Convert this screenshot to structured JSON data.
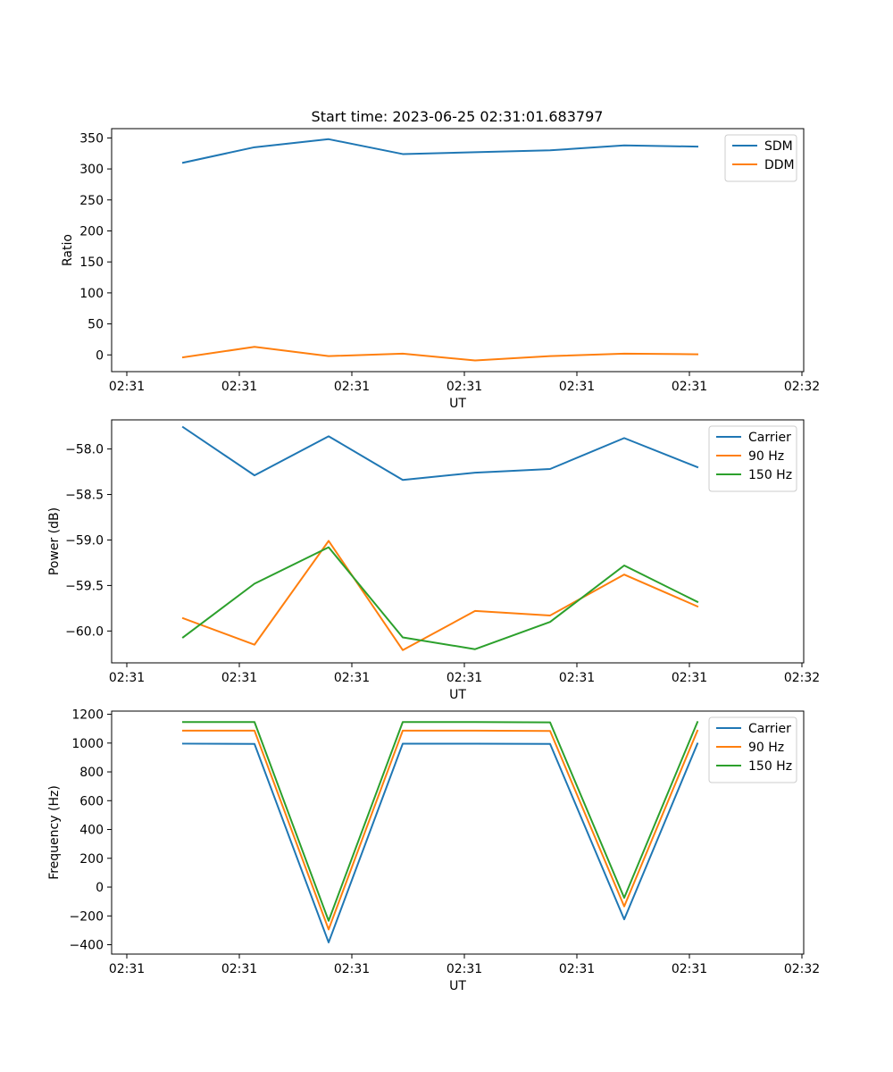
{
  "figure": {
    "title": "Start time: 2023-06-25 02:31:01.683797"
  },
  "chart_data": [
    {
      "type": "line",
      "title": "Start time: 2023-06-25 02:31:01.683797",
      "xlabel": "UT",
      "ylabel": "Ratio",
      "x_tick_labels": [
        "02:31",
        "02:31",
        "02:31",
        "02:31",
        "02:31",
        "02:31",
        "02:32"
      ],
      "x_points": 8,
      "ylim": [
        -27,
        365
      ],
      "y_ticks": [
        0,
        50,
        100,
        150,
        200,
        250,
        300,
        350
      ],
      "legend_position": "top-right",
      "series": [
        {
          "name": "SDM",
          "color": "#1f77b4",
          "values": [
            310,
            335,
            348,
            324,
            327,
            330,
            338,
            336
          ]
        },
        {
          "name": "DDM",
          "color": "#ff7f0e",
          "values": [
            -4,
            13,
            -2,
            2,
            -9,
            -2,
            2,
            1
          ]
        }
      ]
    },
    {
      "type": "line",
      "xlabel": "UT",
      "ylabel": "Power (dB)",
      "x_tick_labels": [
        "02:31",
        "02:31",
        "02:31",
        "02:31",
        "02:31",
        "02:31",
        "02:32"
      ],
      "x_points": 8,
      "ylim": [
        -60.35,
        -57.68
      ],
      "y_ticks": [
        -60.0,
        -59.5,
        -59.0,
        -58.5,
        -58.0
      ],
      "y_tick_labels": [
        "−60.0",
        "−59.5",
        "−59.0",
        "−58.5",
        "−58.0"
      ],
      "legend_position": "top-right",
      "series": [
        {
          "name": "Carrier",
          "color": "#1f77b4",
          "values": [
            -57.76,
            -58.29,
            -57.86,
            -58.34,
            -58.26,
            -58.22,
            -57.88,
            -58.2
          ]
        },
        {
          "name": "90 Hz",
          "color": "#ff7f0e",
          "values": [
            -59.86,
            -60.15,
            -59.01,
            -60.21,
            -59.78,
            -59.83,
            -59.38,
            -59.73
          ]
        },
        {
          "name": "150 Hz",
          "color": "#2ca02c",
          "values": [
            -60.07,
            -59.48,
            -59.08,
            -60.07,
            -60.2,
            -59.9,
            -59.28,
            -59.68
          ]
        }
      ]
    },
    {
      "type": "line",
      "xlabel": "UT",
      "ylabel": "Frequency (Hz)",
      "x_tick_labels": [
        "02:31",
        "02:31",
        "02:31",
        "02:31",
        "02:31",
        "02:31",
        "02:32"
      ],
      "x_points": 8,
      "ylim": [
        -465,
        1222
      ],
      "y_ticks": [
        -400,
        -200,
        0,
        200,
        400,
        600,
        800,
        1000,
        1200
      ],
      "y_tick_labels": [
        "−400",
        "−200",
        "0",
        "200",
        "400",
        "600",
        "800",
        "1000",
        "1200"
      ],
      "legend_position": "top-right",
      "series": [
        {
          "name": "Carrier",
          "color": "#1f77b4",
          "values": [
            996,
            994,
            -384,
            996,
            996,
            994,
            -224,
            996
          ]
        },
        {
          "name": "90 Hz",
          "color": "#ff7f0e",
          "values": [
            1086,
            1086,
            -294,
            1086,
            1086,
            1084,
            -134,
            1086
          ]
        },
        {
          "name": "150 Hz",
          "color": "#2ca02c",
          "values": [
            1146,
            1146,
            -234,
            1146,
            1146,
            1144,
            -74,
            1146
          ]
        }
      ]
    }
  ]
}
